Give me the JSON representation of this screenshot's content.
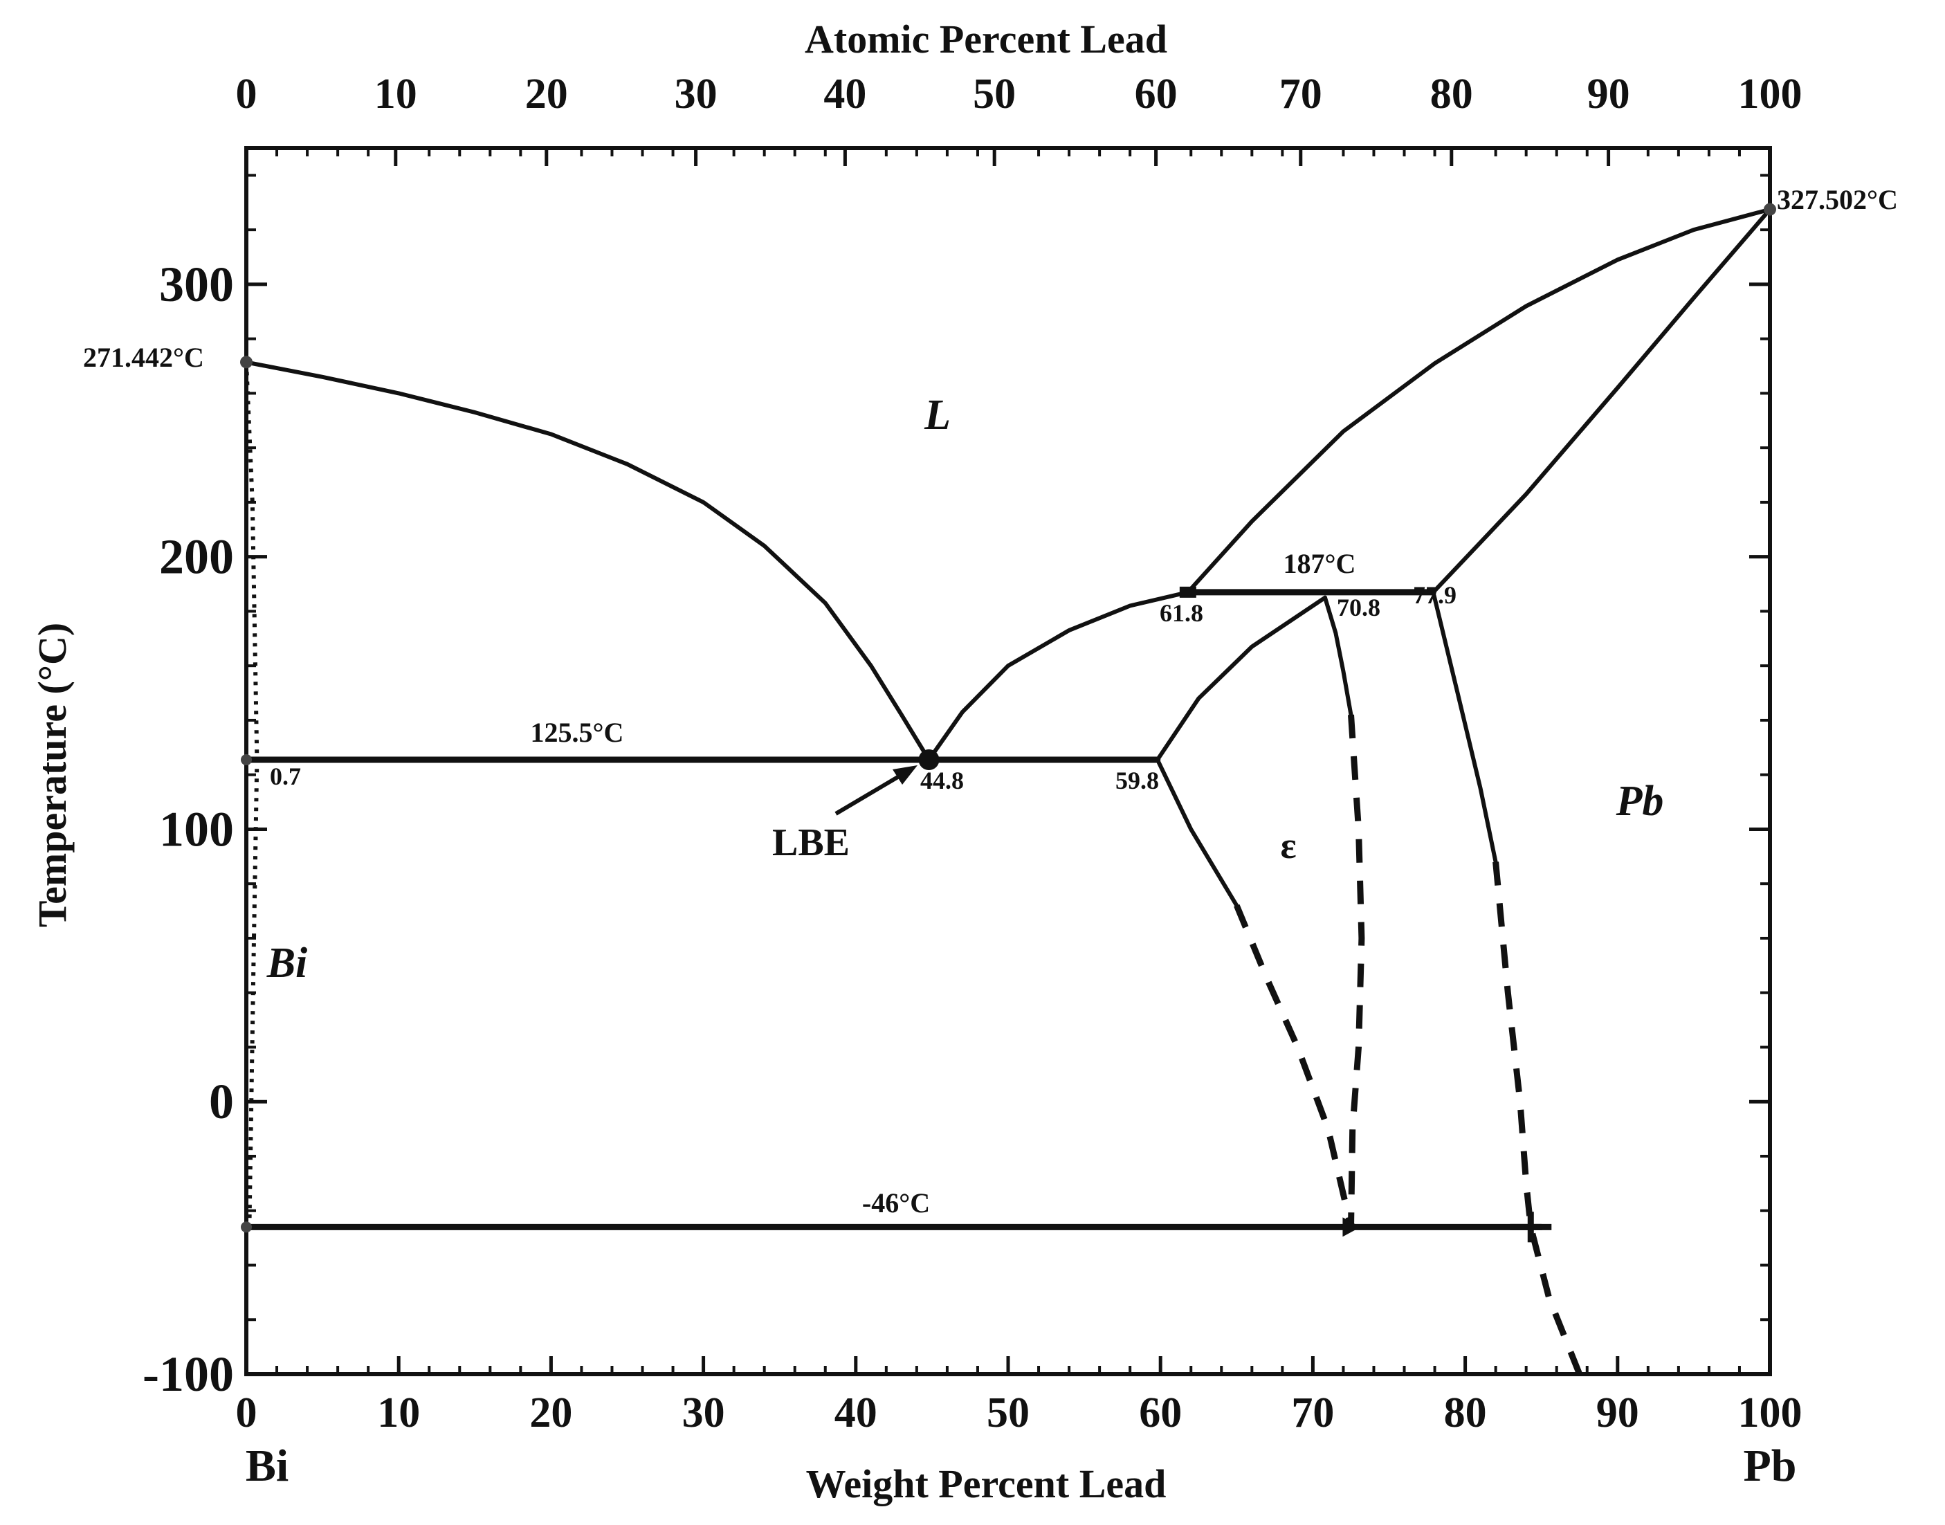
{
  "chart_data": {
    "type": "phase-diagram",
    "title": "",
    "top_axis": {
      "label": "Atomic Percent Lead",
      "ticks": [
        "0",
        "10",
        "20",
        "30",
        "40",
        "50",
        "60",
        "70",
        "80",
        "90",
        "100"
      ],
      "tick_wt_positions": [
        0,
        9.8,
        19.7,
        29.5,
        39.3,
        49.1,
        59.7,
        69.2,
        79.1,
        89.4,
        100
      ]
    },
    "x_axis": {
      "label": "Weight Percent Lead",
      "range": [
        0,
        100
      ],
      "ticks": [
        "0",
        "10",
        "20",
        "30",
        "40",
        "50",
        "60",
        "70",
        "80",
        "90",
        "100"
      ]
    },
    "y_axis": {
      "label": "Temperature (°C)",
      "range": [
        -100,
        350
      ],
      "ticks": [
        "-100",
        "0",
        "100",
        "200",
        "300"
      ]
    },
    "endpoint_labels": {
      "left": "Bi",
      "right": "Pb"
    },
    "phase_labels": {
      "liquid": "L",
      "epsilon": "ε",
      "bismuth": "Bi",
      "lead": "Pb"
    },
    "annotations": {
      "bi_melting": "271.442°C",
      "pb_melting": "327.502°C",
      "eutectic_temp": "125.5°C",
      "peritectic_temp": "187°C",
      "low_temp": "-46°C",
      "bi_solvus": "0.7",
      "eutectic_comp": "44.8",
      "eps_eutectic": "59.8",
      "peritectic_liquid": "61.8",
      "peritectic_eps": "70.8",
      "peritectic_pb": "77.9",
      "lbe": "LBE"
    },
    "special_points": {
      "bi_melting": [
        0,
        271.442
      ],
      "pb_melting": [
        100,
        327.502
      ],
      "eutectic": [
        44.8,
        125.5
      ],
      "peritectic": [
        61.8,
        187
      ],
      "low_invariant_eps": [
        72.5,
        -46
      ],
      "low_invariant_pb": [
        84.3,
        -46
      ]
    },
    "series": [
      {
        "name": "liquidus-bi",
        "style": "solid",
        "points": [
          [
            0,
            271.4
          ],
          [
            5,
            266
          ],
          [
            10,
            260
          ],
          [
            15,
            253
          ],
          [
            20,
            245
          ],
          [
            25,
            234
          ],
          [
            30,
            220
          ],
          [
            34,
            204
          ],
          [
            38,
            183
          ],
          [
            41,
            160
          ],
          [
            43,
            142
          ],
          [
            44.8,
            125.5
          ]
        ]
      },
      {
        "name": "liquidus-eps",
        "style": "solid",
        "points": [
          [
            44.8,
            125.5
          ],
          [
            47,
            143
          ],
          [
            50,
            160
          ],
          [
            54,
            173
          ],
          [
            58,
            182
          ],
          [
            61.8,
            187
          ]
        ]
      },
      {
        "name": "liquidus-pb",
        "style": "solid",
        "points": [
          [
            61.8,
            187
          ],
          [
            66,
            213
          ],
          [
            72,
            246
          ],
          [
            78,
            271
          ],
          [
            84,
            292
          ],
          [
            90,
            309
          ],
          [
            95,
            320
          ],
          [
            100,
            327.5
          ]
        ]
      },
      {
        "name": "solidus-pb",
        "style": "solid",
        "points": [
          [
            77.9,
            187
          ],
          [
            84,
            223
          ],
          [
            90,
            262
          ],
          [
            95,
            295
          ],
          [
            100,
            327.5
          ]
        ]
      },
      {
        "name": "eps-solidus",
        "style": "solid",
        "points": [
          [
            59.8,
            125.5
          ],
          [
            62.5,
            148
          ],
          [
            66,
            167
          ],
          [
            70.8,
            185
          ]
        ]
      },
      {
        "name": "eutectic-isotherm",
        "style": "solid",
        "points": [
          [
            0,
            125.5
          ],
          [
            59.8,
            125.5
          ]
        ]
      },
      {
        "name": "peritectic-isotherm",
        "style": "solid",
        "points": [
          [
            61.8,
            187
          ],
          [
            77.9,
            187
          ]
        ]
      },
      {
        "name": "low-isotherm",
        "style": "solid",
        "points": [
          [
            0,
            -46
          ],
          [
            85,
            -46
          ]
        ]
      },
      {
        "name": "eps-solvus-left-solid",
        "style": "solid",
        "points": [
          [
            59.8,
            125.5
          ],
          [
            62,
            100
          ],
          [
            65,
            72
          ]
        ]
      },
      {
        "name": "eps-solvus-left-dashed",
        "style": "dashed",
        "points": [
          [
            65,
            72
          ],
          [
            67,
            45
          ],
          [
            69,
            20
          ],
          [
            71,
            -10
          ],
          [
            72.5,
            -46
          ]
        ]
      },
      {
        "name": "eps-solvus-right-solid",
        "style": "solid",
        "points": [
          [
            70.8,
            185
          ],
          [
            71.5,
            172
          ],
          [
            72,
            158
          ],
          [
            72.5,
            142
          ]
        ]
      },
      {
        "name": "eps-solvus-right-dashed",
        "style": "dashed",
        "points": [
          [
            72.5,
            142
          ],
          [
            73,
            100
          ],
          [
            73.2,
            60
          ],
          [
            73,
            20
          ],
          [
            72.6,
            -10
          ],
          [
            72.5,
            -46
          ]
        ]
      },
      {
        "name": "pb-solvus-solid",
        "style": "solid",
        "points": [
          [
            77.9,
            187
          ],
          [
            79.5,
            150
          ],
          [
            81,
            115
          ],
          [
            82,
            88
          ]
        ]
      },
      {
        "name": "pb-solvus-dashed",
        "style": "dashed",
        "points": [
          [
            82,
            88
          ],
          [
            82.8,
            40
          ],
          [
            83.6,
            0
          ],
          [
            84,
            -30
          ],
          [
            84.3,
            -46
          ],
          [
            85.5,
            -72
          ],
          [
            87.5,
            -100
          ]
        ]
      },
      {
        "name": "bi-solvus",
        "style": "dotted",
        "points": [
          [
            0,
            271.4
          ],
          [
            0.4,
            220
          ],
          [
            0.7,
            125.5
          ],
          [
            0.5,
            60
          ],
          [
            0.2,
            -46
          ]
        ]
      }
    ]
  }
}
